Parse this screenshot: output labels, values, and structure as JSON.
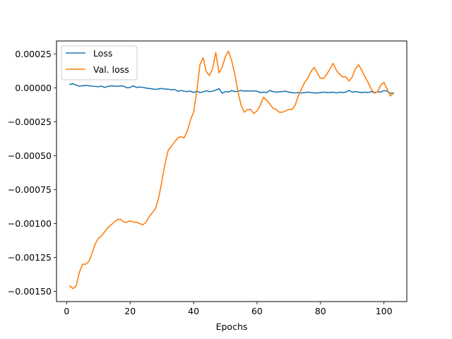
{
  "chart_data": {
    "type": "line",
    "title": "",
    "xlabel": "Epochs",
    "ylabel": "",
    "xlim": [
      -3.2,
      107.2
    ],
    "ylim": [
      -0.001575,
      0.000345
    ],
    "x_ticks": [
      0,
      20,
      40,
      60,
      80,
      100
    ],
    "x_tick_labels": [
      "0",
      "20",
      "40",
      "60",
      "80",
      "100"
    ],
    "y_ticks": [
      0.00025,
      0.0,
      -0.00025,
      -0.0005,
      -0.00075,
      -0.001,
      -0.00125,
      -0.0015
    ],
    "y_tick_labels": [
      "0.00025",
      "0.00000",
      "−0.00025",
      "−0.00050",
      "−0.00075",
      "−0.00100",
      "−0.00125",
      "−0.00150"
    ],
    "grid": false,
    "legend_position": "upper-left",
    "series": [
      {
        "name": "Loss",
        "color": "#1f77b4",
        "x": [
          1,
          2,
          3,
          4,
          5,
          6,
          7,
          8,
          9,
          10,
          11,
          12,
          13,
          14,
          15,
          16,
          17,
          18,
          19,
          20,
          21,
          22,
          23,
          24,
          25,
          26,
          27,
          28,
          29,
          30,
          31,
          32,
          33,
          34,
          35,
          36,
          37,
          38,
          39,
          40,
          41,
          42,
          43,
          44,
          45,
          46,
          47,
          48,
          49,
          50,
          51,
          52,
          53,
          54,
          55,
          56,
          57,
          58,
          59,
          60,
          61,
          62,
          63,
          64,
          65,
          66,
          67,
          68,
          69,
          70,
          71,
          72,
          73,
          74,
          75,
          76,
          77,
          78,
          79,
          80,
          81,
          82,
          83,
          84,
          85,
          86,
          87,
          88,
          89,
          90,
          91,
          92,
          93,
          94,
          95,
          96,
          97,
          98,
          99,
          100,
          101,
          102,
          103
        ],
        "values": [
          2.5e-05,
          3e-05,
          2e-05,
          1.2e-05,
          1.5e-05,
          1.8e-05,
          1.5e-05,
          1.2e-05,
          1e-05,
          8e-06,
          1.2e-05,
          3e-06,
          1e-05,
          1.5e-05,
          1.3e-05,
          1e-05,
          1.5e-05,
          1.2e-05,
          0.0,
          2e-06,
          1.5e-05,
          3e-06,
          5e-06,
          3e-06,
          -2e-06,
          -5e-06,
          -8e-06,
          -1.2e-05,
          -8e-06,
          -5e-06,
          -1e-05,
          -1e-05,
          -1.5e-05,
          -1.2e-05,
          -2.5e-05,
          -2e-05,
          -2.5e-05,
          -2.8e-05,
          -2.5e-05,
          -3.5e-05,
          -2.5e-05,
          -3.5e-05,
          -3e-05,
          -2.2e-05,
          -2.8e-05,
          -2.5e-05,
          -1.8e-05,
          -5e-06,
          -4e-05,
          -2.8e-05,
          -3.2e-05,
          -2e-05,
          -2.8e-05,
          -2.5e-05,
          -2e-05,
          -2.5e-05,
          -2.2e-05,
          -2.5e-05,
          -2.2e-05,
          -2.5e-05,
          -3.5e-05,
          -3.2e-05,
          -3.5e-05,
          -2e-05,
          -2.8e-05,
          -3.2e-05,
          -3e-05,
          -2.8e-05,
          -2.5e-05,
          -3.2e-05,
          -3.5e-05,
          -3.8e-05,
          -3.5e-05,
          -3.8e-05,
          -3.5e-05,
          -3.2e-05,
          -3.5e-05,
          -3.8e-05,
          -3.8e-05,
          -3.5e-05,
          -3.2e-05,
          -3.5e-05,
          -3.5e-05,
          -3.2e-05,
          -3.8e-05,
          -3.2e-05,
          -3.5e-05,
          -3.2e-05,
          -2e-05,
          -3.2e-05,
          -2.8e-05,
          -3.2e-05,
          -3.5e-05,
          -3.2e-05,
          -3.5e-05,
          -2.8e-05,
          -3.5e-05,
          -3e-05,
          -3.2e-05,
          -2e-05,
          -2.5e-05,
          -4e-05,
          -3.8e-05
        ]
      },
      {
        "name": "Val. loss",
        "color": "#ff7f0e",
        "x": [
          1,
          2,
          3,
          4,
          5,
          6,
          7,
          8,
          9,
          10,
          11,
          12,
          13,
          14,
          15,
          16,
          17,
          18,
          19,
          20,
          21,
          22,
          23,
          24,
          25,
          26,
          27,
          28,
          29,
          30,
          31,
          32,
          33,
          34,
          35,
          36,
          37,
          38,
          39,
          40,
          41,
          42,
          43,
          44,
          45,
          46,
          47,
          48,
          49,
          50,
          51,
          52,
          53,
          54,
          55,
          56,
          57,
          58,
          59,
          60,
          61,
          62,
          63,
          64,
          65,
          66,
          67,
          68,
          69,
          70,
          71,
          72,
          73,
          74,
          75,
          76,
          77,
          78,
          79,
          80,
          81,
          82,
          83,
          84,
          85,
          86,
          87,
          88,
          89,
          90,
          91,
          92,
          93,
          94,
          95,
          96,
          97,
          98,
          99,
          100,
          101,
          102,
          103
        ],
        "values": [
          -0.00146,
          -0.00148,
          -0.00146,
          -0.00136,
          -0.0013,
          -0.0013,
          -0.00128,
          -0.00122,
          -0.00115,
          -0.00111,
          -0.00109,
          -0.00106,
          -0.00103,
          -0.00101,
          -0.00099,
          -0.00097,
          -0.00097,
          -0.00099,
          -0.00099,
          -0.00098,
          -0.00099,
          -0.00099,
          -0.001,
          -0.00101,
          -0.00099,
          -0.00095,
          -0.00092,
          -0.00089,
          -0.00081,
          -0.00069,
          -0.00056,
          -0.00046,
          -0.00043,
          -0.0004,
          -0.00037,
          -0.00036,
          -0.00037,
          -0.00032,
          -0.00024,
          -0.00018,
          -3e-05,
          0.00017,
          0.00022,
          0.00012,
          9e-05,
          0.00014,
          0.00026,
          0.00011,
          0.00015,
          0.00023,
          0.00027,
          0.0002,
          0.0001,
          -3e-05,
          -0.00013,
          -0.00018,
          -0.00016,
          -0.00016,
          -0.00019,
          -0.00017,
          -0.00013,
          -7e-05,
          -9e-05,
          -0.00012,
          -0.00015,
          -0.00016,
          -0.00018,
          -0.00018,
          -0.00017,
          -0.00016,
          -0.00016,
          -0.00013,
          -6e-05,
          -1e-05,
          4e-05,
          7e-05,
          0.00012,
          0.00015,
          0.00011,
          7e-05,
          7e-05,
          0.0001,
          0.00014,
          0.00018,
          0.00013,
          0.0001,
          8e-05,
          8e-05,
          5e-05,
          8e-05,
          0.00014,
          0.00017,
          0.00013,
          8e-05,
          4e-05,
          -1e-05,
          -4e-05,
          -3e-05,
          2e-05,
          4e-05,
          -1e-05,
          -6e-05,
          -4e-05
        ]
      }
    ]
  }
}
